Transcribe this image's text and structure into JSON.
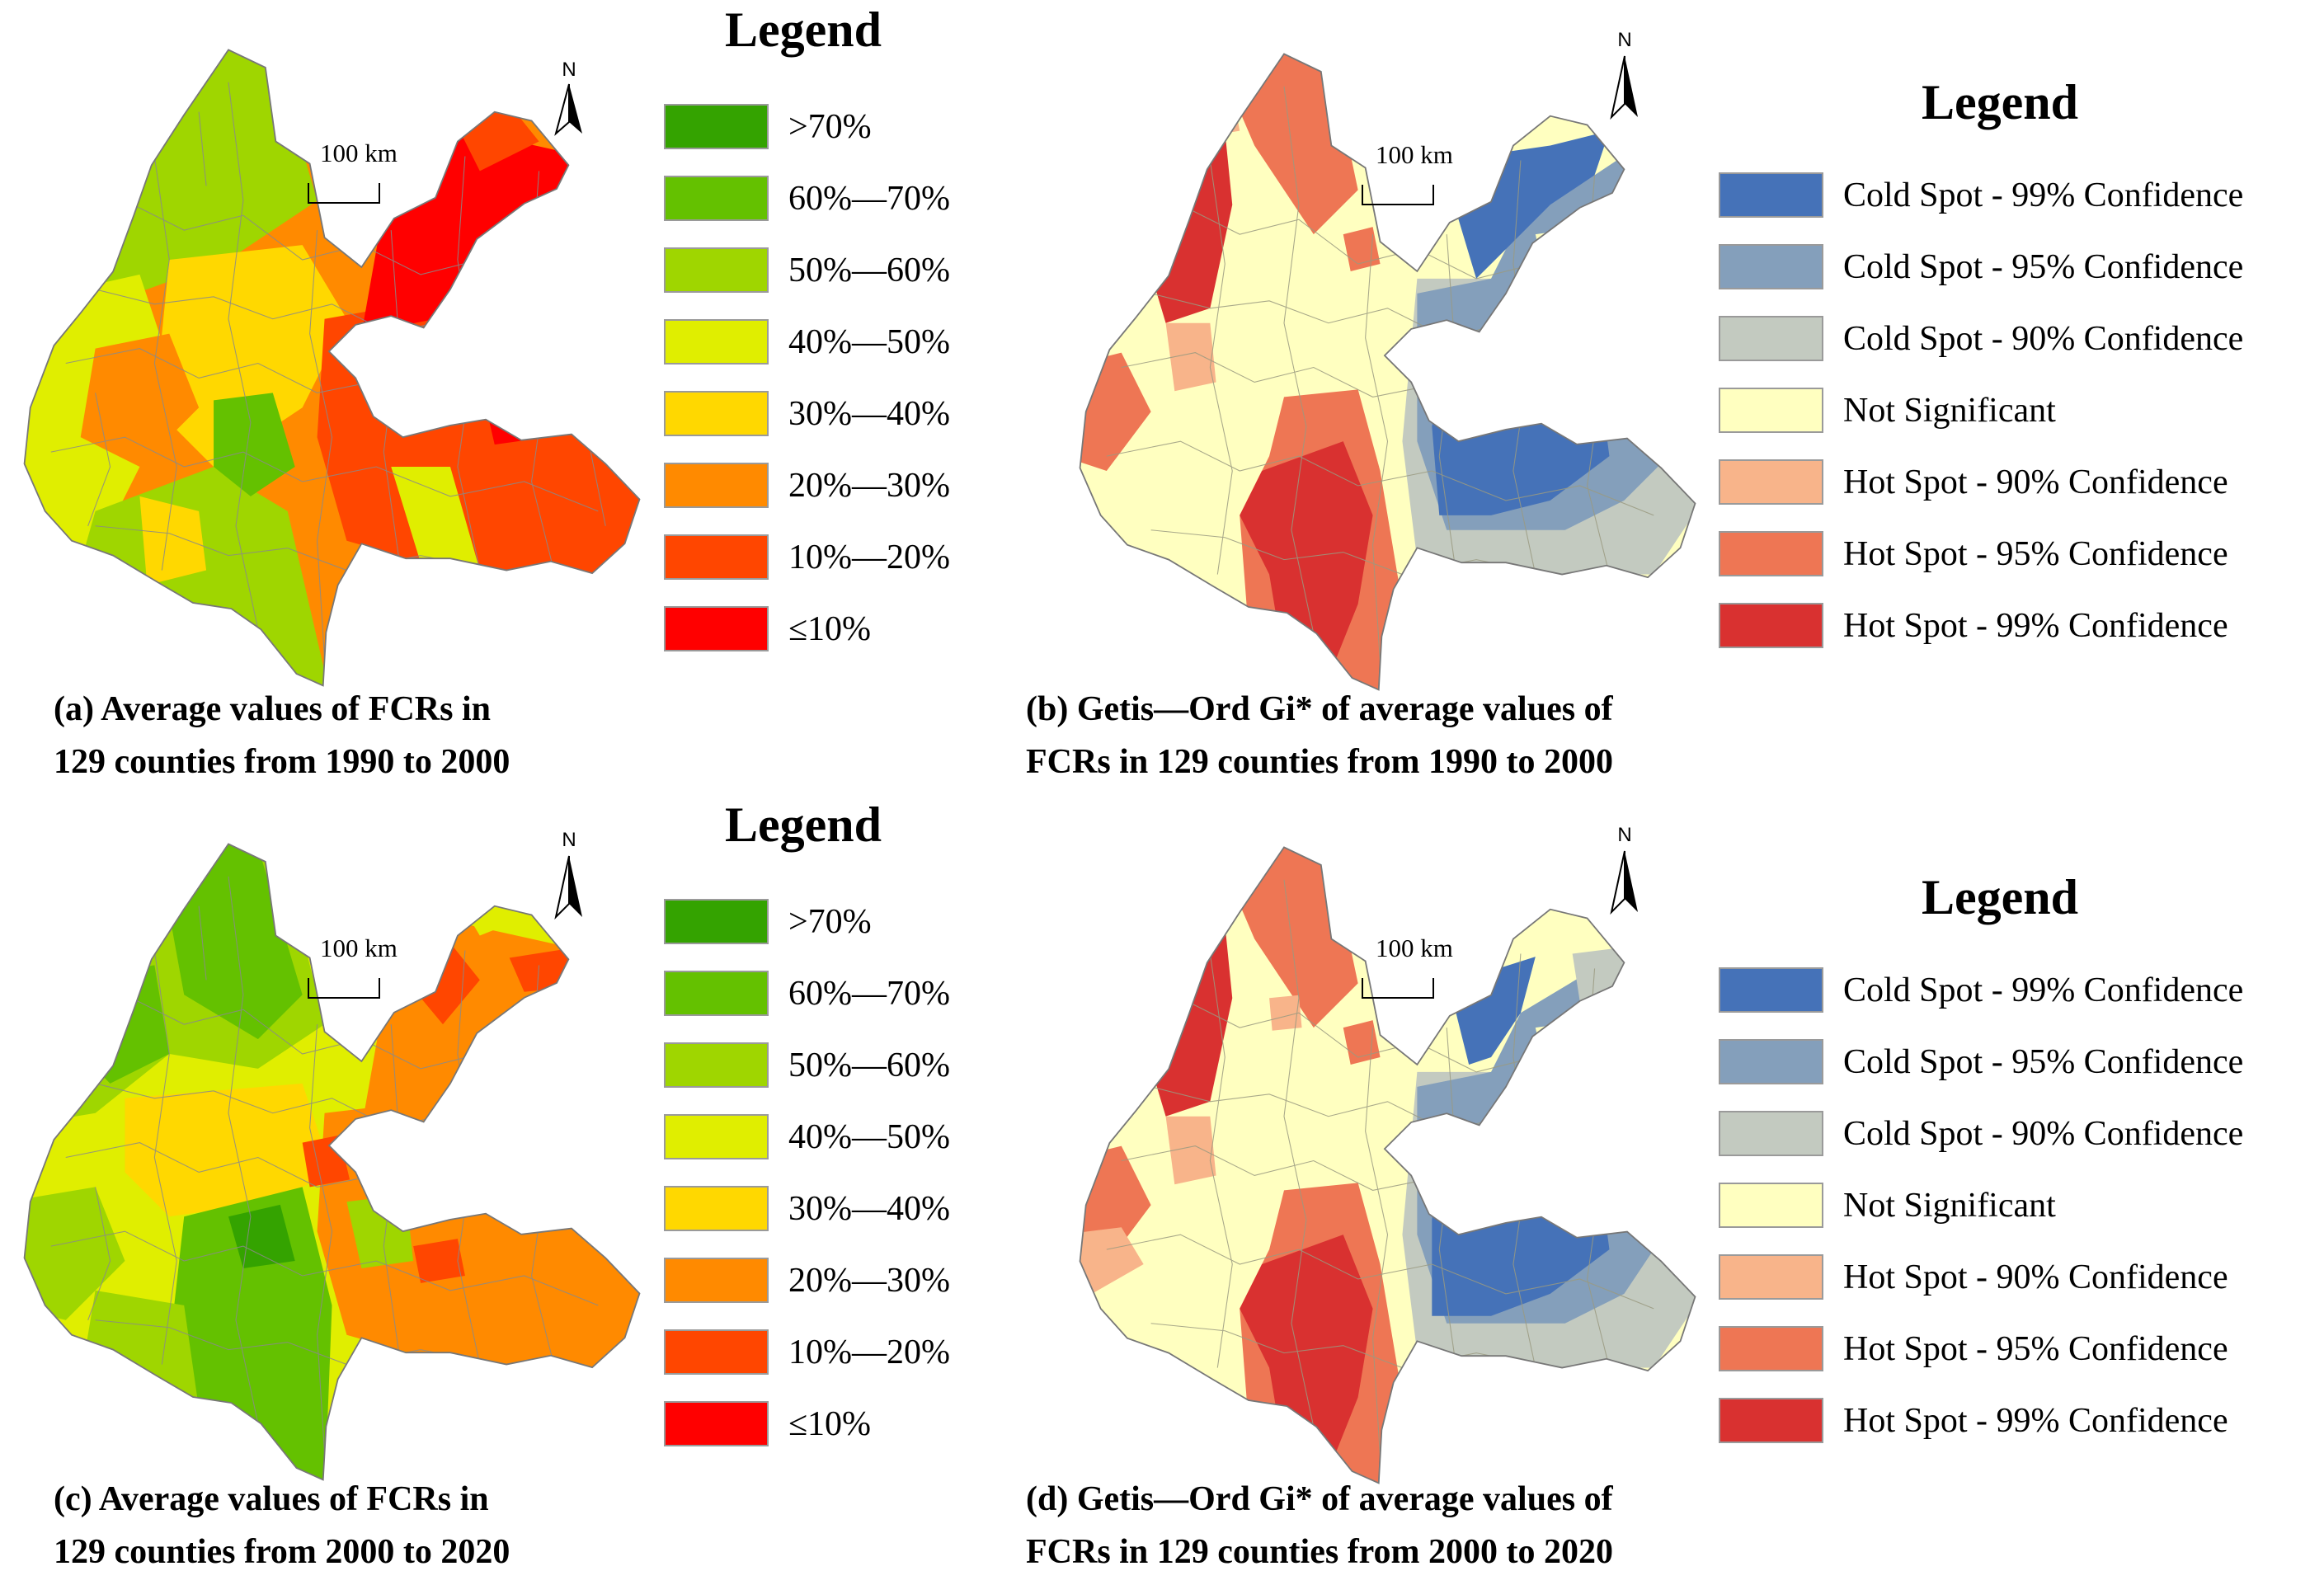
{
  "panels": [
    {
      "id": "a",
      "legend_title": "Legend",
      "legend": [
        {
          "label": ">70%",
          "color": "#34a300"
        },
        {
          "label": "60%—70%",
          "color": "#64c100"
        },
        {
          "label": "50%—60%",
          "color": "#9fd600"
        },
        {
          "label": "40%—50%",
          "color": "#e0ee00"
        },
        {
          "label": "30%—40%",
          "color": "#ffd800"
        },
        {
          "label": "20%—30%",
          "color": "#ff8a00"
        },
        {
          "label": "10%—20%",
          "color": "#ff4600"
        },
        {
          "label": "≤10%",
          "color": "#ff0000"
        }
      ],
      "caption_lines": [
        "(a) Average values of FCRs  in",
        "129 counties from 1990  to 2000"
      ],
      "scale_label": "100 km",
      "north_label": "N"
    },
    {
      "id": "b",
      "legend_title": "Legend",
      "legend": [
        {
          "label": "Cold Spot - 99% Confidence",
          "color": "#4572b8"
        },
        {
          "label": "Cold Spot - 95% Confidence",
          "color": "#849fbb"
        },
        {
          "label": "Cold Spot - 90% Confidence",
          "color": "#c3cac0"
        },
        {
          "label": "Not Significant",
          "color": "#ffffc0"
        },
        {
          "label": "Hot Spot - 90% Confidence",
          "color": "#f8b48a"
        },
        {
          "label": "Hot Spot - 95% Confidence",
          "color": "#ee7654"
        },
        {
          "label": "Hot Spot - 99% Confidence",
          "color": "#d93130"
        }
      ],
      "caption_lines": [
        "(b) Getis—Ord Gi* of average values of",
        "FCRs  in 129 counties from 1990  to 2000"
      ],
      "scale_label": "100 km",
      "north_label": "N"
    },
    {
      "id": "c",
      "legend_title": "Legend",
      "legend": [
        {
          "label": ">70%",
          "color": "#34a300"
        },
        {
          "label": "60%—70%",
          "color": "#64c100"
        },
        {
          "label": "50%—60%",
          "color": "#9fd600"
        },
        {
          "label": "40%—50%",
          "color": "#e0ee00"
        },
        {
          "label": "30%—40%",
          "color": "#ffd800"
        },
        {
          "label": "20%—30%",
          "color": "#ff8a00"
        },
        {
          "label": "10%—20%",
          "color": "#ff4600"
        },
        {
          "label": "≤10%",
          "color": "#ff0000"
        }
      ],
      "caption_lines": [
        "(c) Average values of FCRs  in",
        "129 counties from 2000  to 2020"
      ],
      "scale_label": "100 km",
      "north_label": "N"
    },
    {
      "id": "d",
      "legend_title": "Legend",
      "legend": [
        {
          "label": "Cold Spot - 99% Confidence",
          "color": "#4572b8"
        },
        {
          "label": "Cold Spot - 95% Confidence",
          "color": "#849fbb"
        },
        {
          "label": "Cold Spot - 90% Confidence",
          "color": "#c3cac0"
        },
        {
          "label": "Not Significant",
          "color": "#ffffc0"
        },
        {
          "label": "Hot Spot - 90% Confidence",
          "color": "#f8b48a"
        },
        {
          "label": "Hot Spot - 95% Confidence",
          "color": "#ee7654"
        },
        {
          "label": "Hot Spot - 99% Confidence",
          "color": "#d93130"
        }
      ],
      "caption_lines": [
        "(d)  Getis—Ord Gi* of average values of",
        "FCRs  in 129 counties from 2000  to 2020"
      ],
      "scale_label": "100 km",
      "north_label": "N"
    }
  ]
}
